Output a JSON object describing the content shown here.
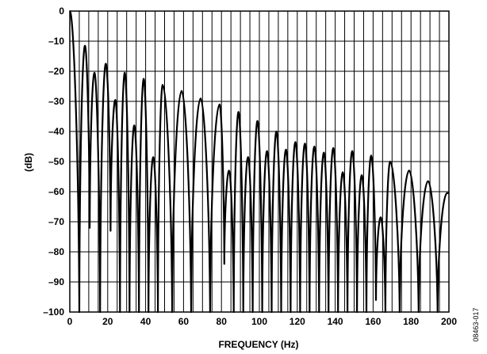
{
  "chart_data": {
    "type": "line",
    "title": "",
    "xlabel": "FREQUENCY (Hz)",
    "ylabel": "(dB)",
    "xlim": [
      0,
      200
    ],
    "ylim": [
      -100,
      0
    ],
    "x_ticks": [
      0,
      20,
      40,
      60,
      80,
      100,
      120,
      140,
      160,
      180,
      200
    ],
    "y_ticks": [
      0,
      -10,
      -20,
      -30,
      -40,
      -50,
      -60,
      -70,
      -80,
      -90,
      -100
    ],
    "x_tick_labels": [
      "0",
      "20",
      "40",
      "60",
      "80",
      "100",
      "120",
      "140",
      "160",
      "180",
      "200"
    ],
    "y_tick_labels": [
      "0",
      "–10",
      "–20",
      "–30",
      "–40",
      "–50",
      "–60",
      "–70",
      "–80",
      "–90",
      "–100"
    ],
    "x_minor_step": 5,
    "grid": true,
    "lobe_peaks_db": [
      [
        0,
        0
      ],
      [
        8,
        -11.5
      ],
      [
        13,
        -20.5
      ],
      [
        19,
        -17.5
      ],
      [
        24,
        -29.5
      ],
      [
        29,
        -20.5
      ],
      [
        34,
        -38
      ],
      [
        39,
        -22.5
      ],
      [
        44,
        -48.5
      ],
      [
        49,
        -24.5
      ],
      [
        59,
        -26.5
      ],
      [
        69,
        -29
      ],
      [
        79,
        -31
      ],
      [
        84,
        -53
      ],
      [
        89,
        -33.5
      ],
      [
        94,
        -48.5
      ],
      [
        99,
        -36.5
      ],
      [
        104,
        -46.5
      ],
      [
        109,
        -40
      ],
      [
        114,
        -46
      ],
      [
        119,
        -43.5
      ],
      [
        124,
        -44
      ],
      [
        129,
        -45
      ],
      [
        134,
        -47
      ],
      [
        139,
        -45.5
      ],
      [
        144,
        -53.5
      ],
      [
        149,
        -46.5
      ],
      [
        154,
        -54.5
      ],
      [
        159,
        -48
      ],
      [
        164,
        -68.5
      ],
      [
        169,
        -50
      ],
      [
        179,
        -53
      ],
      [
        189,
        -56.5
      ],
      [
        199,
        -60.5
      ]
    ],
    "nulls_db": [
      [
        5,
        -100
      ],
      [
        10.5,
        -72
      ],
      [
        16,
        -100
      ],
      [
        21.5,
        -73
      ],
      [
        26.5,
        -100
      ],
      [
        31.5,
        -100
      ],
      [
        36.5,
        -100
      ],
      [
        41.5,
        -100
      ],
      [
        46.5,
        -100
      ],
      [
        54,
        -100
      ],
      [
        64,
        -100
      ],
      [
        74,
        -100
      ],
      [
        81.5,
        -84
      ],
      [
        86.5,
        -100
      ],
      [
        91.5,
        -100
      ],
      [
        96.5,
        -100
      ],
      [
        101.5,
        -100
      ],
      [
        106.5,
        -100
      ],
      [
        111.5,
        -100
      ],
      [
        116.5,
        -100
      ],
      [
        121.5,
        -100
      ],
      [
        126.5,
        -100
      ],
      [
        131.5,
        -100
      ],
      [
        136.5,
        -100
      ],
      [
        141.5,
        -100
      ],
      [
        146.5,
        -100
      ],
      [
        151.5,
        -100
      ],
      [
        156.5,
        -100
      ],
      [
        161.5,
        -96
      ],
      [
        166.5,
        -100
      ],
      [
        174,
        -100
      ],
      [
        184,
        -100
      ],
      [
        194,
        -100
      ]
    ],
    "trace_end_db": [
      200,
      -60.5
    ]
  },
  "figure_id": "08463-017"
}
